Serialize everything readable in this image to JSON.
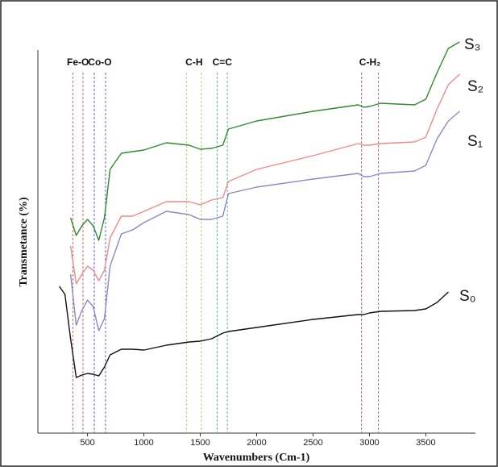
{
  "chart_data": {
    "type": "line",
    "xlabel": "Wavenumbers (Cm-1)",
    "ylabel": "Transmetance (%)",
    "xlim": [
      60,
      3940
    ],
    "ylim": [
      0,
      490
    ],
    "xticks": [
      500,
      1000,
      1500,
      2000,
      2500,
      3000,
      3500
    ],
    "x": [
      250,
      300,
      350,
      400,
      450,
      500,
      550,
      600,
      650,
      700,
      800,
      900,
      1000,
      1200,
      1400,
      1500,
      1600,
      1700,
      1750,
      2000,
      2500,
      2900,
      2950,
      3000,
      3100,
      3400,
      3500,
      3600,
      3700,
      3800
    ],
    "series": [
      {
        "name": "S₀",
        "color": "#111111",
        "values": [
          182,
          172,
          117,
          69,
          72,
          74,
          73,
          71,
          82,
          97,
          104,
          104,
          103,
          109,
          113,
          114,
          117,
          124,
          126,
          131,
          141,
          147,
          147,
          149,
          151,
          152,
          154,
          162,
          175,
          null
        ]
      },
      {
        "name": "S₁",
        "color": "#8a88c8",
        "values": [
          null,
          null,
          197,
          134,
          152,
          165,
          157,
          127,
          142,
          207,
          247,
          252,
          261,
          275,
          271,
          265,
          265,
          269,
          297,
          305,
          315,
          322,
          318,
          318,
          322,
          325,
          332,
          365,
          387,
          399
        ]
      },
      {
        "name": "S₂",
        "color": "#f08a8a",
        "values": [
          null,
          null,
          232,
          185,
          197,
          207,
          202,
          189,
          202,
          242,
          269,
          269,
          275,
          287,
          287,
          283,
          289,
          292,
          312,
          327,
          344,
          359,
          357,
          357,
          359,
          361,
          367,
          402,
          432,
          445
        ]
      },
      {
        "name": "S₃",
        "color": "#2e8b2e",
        "values": [
          null,
          null,
          267,
          245,
          257,
          265,
          257,
          239,
          267,
          327,
          347,
          349,
          351,
          360,
          357,
          352,
          353,
          357,
          377,
          387,
          399,
          407,
          404,
          405,
          409,
          407,
          414,
          447,
          477,
          485
        ]
      }
    ],
    "annotations": [
      {
        "text": "Fe-O",
        "lines": [
          370,
          460
        ],
        "color": "#e05050"
      },
      {
        "text": "Co-O",
        "lines": [
          560,
          660
        ],
        "color": "#5050e0"
      },
      {
        "text": "C-H",
        "lines": [
          1380,
          1510
        ],
        "color": "#c8c050"
      },
      {
        "text": "C=C",
        "lines": [
          1650,
          1740
        ],
        "color": "#50b0b0"
      },
      {
        "text": "C-H₂",
        "lines": [
          2930,
          3080
        ],
        "color": "#b05080"
      }
    ]
  }
}
